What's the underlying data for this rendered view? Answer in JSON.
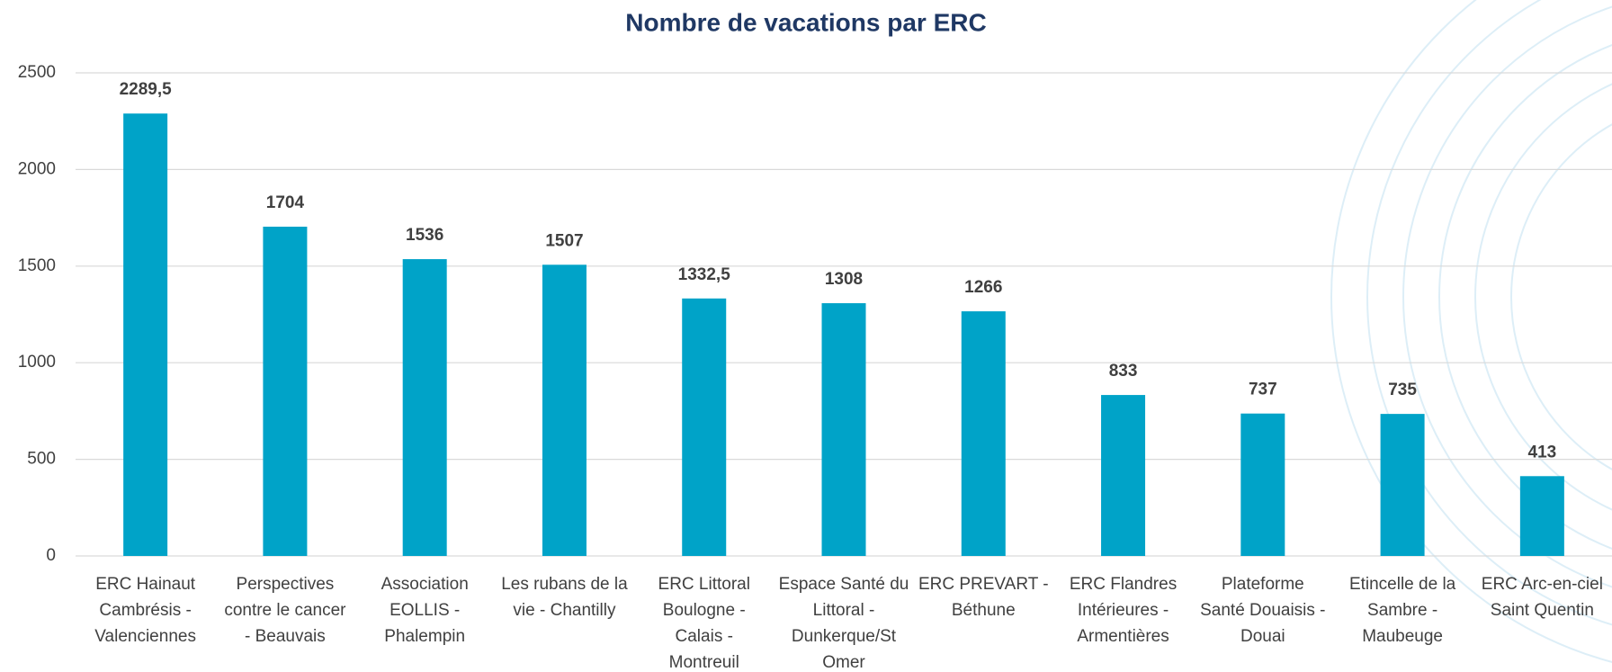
{
  "chart_data": {
    "type": "bar",
    "title": "Nombre de vacations par ERC",
    "categories": [
      "ERC Hainaut Cambrésis - Valenciennes",
      "Perspectives contre le cancer - Beauvais",
      "Association EOLLIS - Phalempin",
      "Les rubans de la vie - Chantilly",
      "ERC Littoral Boulogne - Calais - Montreuil",
      "Espace Santé du Littoral - Dunkerque/St Omer",
      "ERC PREVART - Béthune",
      "ERC Flandres Intérieures - Armentières",
      "Plateforme Santé Douaisis - Douai",
      "Etincelle de la Sambre - Maubeuge",
      "ERC Arc-en-ciel Saint Quentin"
    ],
    "values": [
      2289.5,
      1704,
      1536,
      1507,
      1332.5,
      1308,
      1266,
      833,
      737,
      735,
      413
    ],
    "value_labels": [
      "2289,5",
      "1704",
      "1536",
      "1507",
      "1332,5",
      "1308",
      "1266",
      "833",
      "737",
      "735",
      "413"
    ],
    "color": "#00a3c8",
    "ylim": [
      0,
      2500
    ],
    "yticks": [
      0,
      500,
      1000,
      1500,
      2000,
      2500
    ],
    "grid": true
  }
}
